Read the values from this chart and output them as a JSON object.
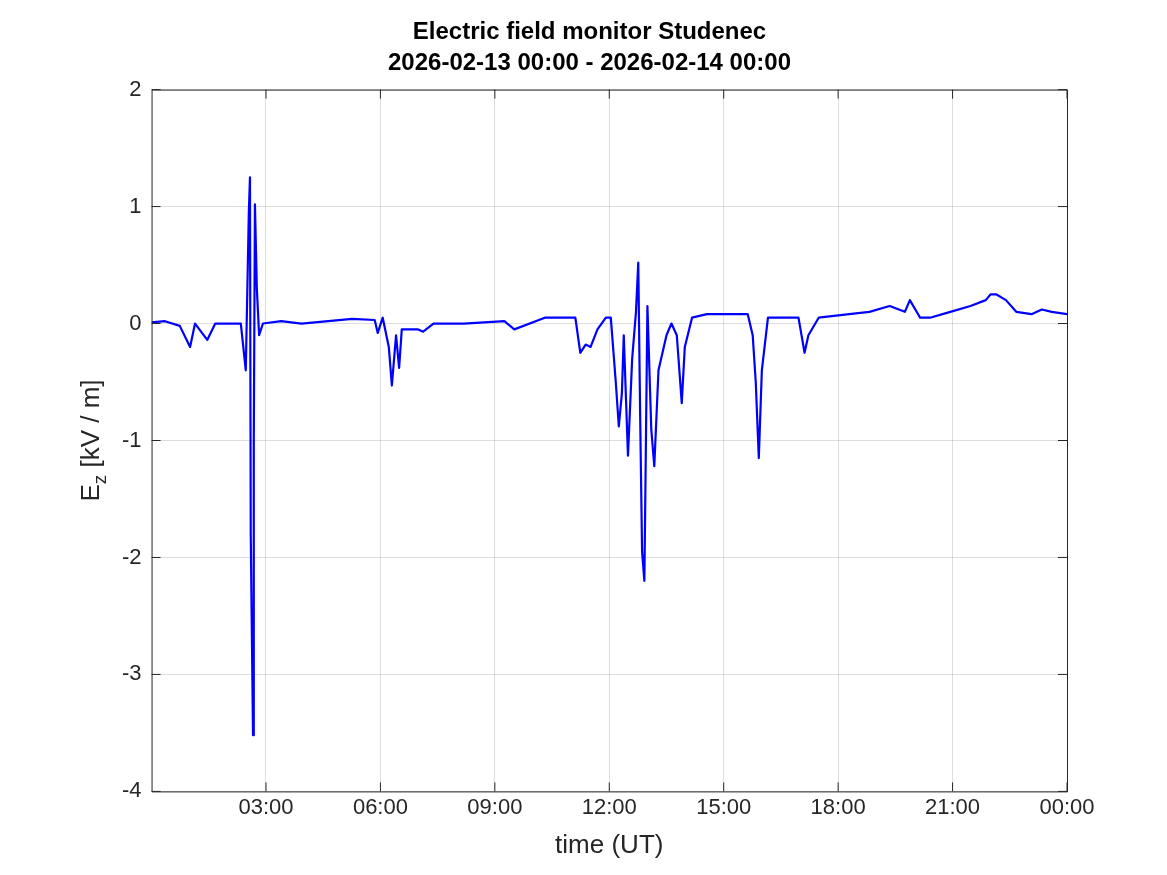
{
  "chart_data": {
    "type": "line",
    "title": "Electric field monitor Studenec",
    "subtitle": "2026-02-13 00:00 - 2026-02-14 00:00",
    "xlabel": "time (UT)",
    "ylabel": "E$_{z}$ [kV / m]",
    "xlim": [
      0,
      24
    ],
    "xticks": [
      {
        "value": 3,
        "label": "03:00"
      },
      {
        "value": 6,
        "label": "06:00"
      },
      {
        "value": 9,
        "label": "09:00"
      },
      {
        "value": 12,
        "label": "12:00"
      },
      {
        "value": 15,
        "label": "15:00"
      },
      {
        "value": 18,
        "label": "18:00"
      },
      {
        "value": 21,
        "label": "21:00"
      },
      {
        "value": 24,
        "label": "00:00"
      }
    ],
    "ylim": [
      -4,
      2
    ],
    "yticks": [
      -4,
      -3,
      -2,
      -1,
      0,
      1,
      2
    ],
    "grid": true,
    "marker": "none",
    "line_style": "solid",
    "series": [
      {
        "color": "#0000ff",
        "x": [
          0,
          0.35,
          0.74,
          1.01,
          1.14,
          1.46,
          1.67,
          2.34,
          2.47,
          2.55,
          2.58,
          2.6,
          2.66,
          2.68,
          2.71,
          2.76,
          2.82,
          2.92,
          3.4,
          3.93,
          5.26,
          5.85,
          5.93,
          6.06,
          6.22,
          6.3,
          6.41,
          6.49,
          6.56,
          6.99,
          7.12,
          7.39,
          8.19,
          9.25,
          9.51,
          10.31,
          11.11,
          11.24,
          11.38,
          11.51,
          11.69,
          11.91,
          12.04,
          12.17,
          12.25,
          12.33,
          12.38,
          12.49,
          12.6,
          12.7,
          12.76,
          12.81,
          12.86,
          12.92,
          13.0,
          13.1,
          13.18,
          13.29,
          13.5,
          13.63,
          13.77,
          13.9,
          13.98,
          14.17,
          14.56,
          15.63,
          15.76,
          15.84,
          15.92,
          16.0,
          16.16,
          16.96,
          17.12,
          17.22,
          17.49,
          18.29,
          18.82,
          19.35,
          19.75,
          19.88,
          20.15,
          20.41,
          20.94,
          21.47,
          21.87,
          22.0,
          22.14,
          22.4,
          22.67,
          23.07,
          23.34,
          23.6,
          24
        ],
        "values": [
          0.01,
          0.02,
          -0.02,
          -0.2,
          0.0,
          -0.14,
          0.0,
          0.0,
          -0.4,
          0.95,
          1.25,
          -1.8,
          -3.52,
          -1.0,
          1.02,
          0.3,
          -0.1,
          0.0,
          0.02,
          0.0,
          0.04,
          0.03,
          -0.08,
          0.05,
          -0.2,
          -0.53,
          -0.1,
          -0.38,
          -0.05,
          -0.05,
          -0.07,
          0.0,
          0.0,
          0.02,
          -0.05,
          0.05,
          0.05,
          -0.25,
          -0.18,
          -0.2,
          -0.05,
          0.05,
          0.05,
          -0.5,
          -0.88,
          -0.6,
          -0.1,
          -1.13,
          -0.3,
          0.1,
          0.52,
          -0.8,
          -1.95,
          -2.2,
          0.15,
          -0.9,
          -1.22,
          -0.4,
          -0.1,
          0.0,
          -0.1,
          -0.68,
          -0.2,
          0.05,
          0.08,
          0.08,
          -0.1,
          -0.5,
          -1.15,
          -0.4,
          0.05,
          0.05,
          -0.25,
          -0.1,
          0.05,
          0.08,
          0.1,
          0.15,
          0.1,
          0.2,
          0.05,
          0.05,
          0.1,
          0.15,
          0.2,
          0.25,
          0.25,
          0.2,
          0.1,
          0.08,
          0.12,
          0.1,
          0.08
        ]
      }
    ]
  }
}
